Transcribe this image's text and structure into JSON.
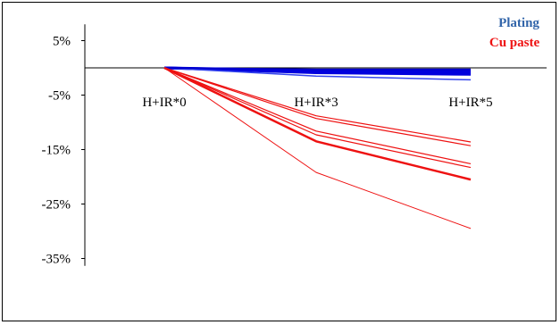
{
  "chart_data": {
    "type": "line",
    "categories": [
      "H+IR*0",
      "H+IR*3",
      "H+IR*5"
    ],
    "y_ticks": [
      "5%",
      "-5%",
      "-15%",
      "-25%",
      "-35%"
    ],
    "y_tick_values": [
      5,
      -5,
      -15,
      -25,
      -35
    ],
    "ylim": [
      -38,
      8
    ],
    "grid": false,
    "legend_position": "top-right",
    "legend": [
      {
        "label": "Plating",
        "color": "#3366aa"
      },
      {
        "label": "Cu paste",
        "color": "#ee1111"
      }
    ],
    "series": [
      {
        "group": "Plating",
        "color": "#0000dd",
        "width": 3,
        "values": [
          0,
          -0.9,
          -1.2
        ]
      },
      {
        "group": "Plating",
        "color": "#0000dd",
        "width": 3,
        "values": [
          0,
          -0.7,
          -0.9
        ]
      },
      {
        "group": "Plating",
        "color": "#0000dd",
        "width": 3,
        "values": [
          0,
          -0.5,
          -0.6
        ]
      },
      {
        "group": "Plating",
        "color": "#3344ee",
        "width": 1.5,
        "values": [
          0,
          -1.5,
          -2.2
        ]
      },
      {
        "group": "Plating",
        "color": "#0000cc",
        "width": 2,
        "values": [
          0,
          -0.3,
          -0.3
        ]
      },
      {
        "group": "Cu paste",
        "color": "#ee1111",
        "width": 1,
        "values": [
          0,
          -19.2,
          -29.5
        ]
      },
      {
        "group": "Cu paste",
        "color": "#ee1111",
        "width": 2.5,
        "values": [
          0,
          -13.5,
          -20.5
        ]
      },
      {
        "group": "Cu paste",
        "color": "#ee1111",
        "width": 1.2,
        "values": [
          0,
          -12.3,
          -18.3
        ]
      },
      {
        "group": "Cu paste",
        "color": "#ee1111",
        "width": 1.2,
        "values": [
          0,
          -11.6,
          -17.6
        ]
      },
      {
        "group": "Cu paste",
        "color": "#ee1111",
        "width": 1.2,
        "values": [
          0,
          -9.3,
          -14.3
        ]
      },
      {
        "group": "Cu paste",
        "color": "#ee1111",
        "width": 1.2,
        "values": [
          0,
          -8.8,
          -13.6
        ]
      }
    ]
  }
}
